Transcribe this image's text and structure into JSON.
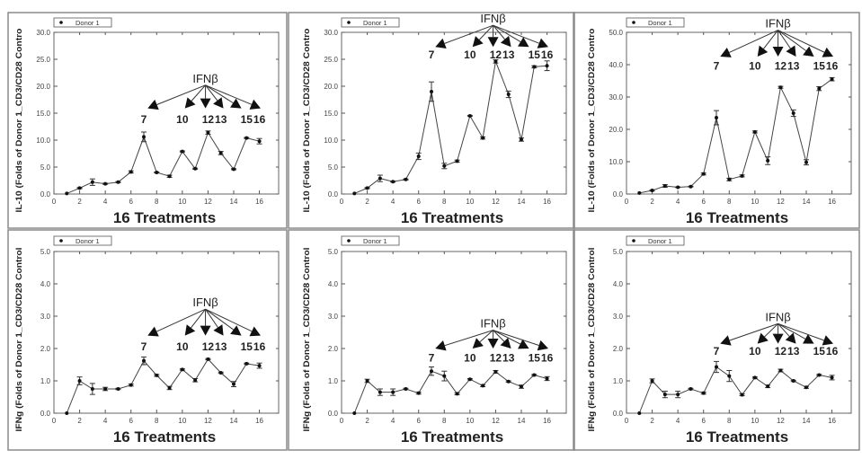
{
  "chart_data": [
    {
      "type": "line",
      "ylabel": "IL-10 (Folds of Donor 1_CD3/CD28 Contro",
      "xlabel": "16 Treatments",
      "legend": "Donor 1",
      "legend_placement": "top-left",
      "xlim": [
        0,
        17.5
      ],
      "ylim": [
        0,
        30
      ],
      "xticks": [
        0,
        2,
        4,
        6,
        8,
        10,
        12,
        14,
        16
      ],
      "yticks": [
        "0.0",
        "5.0",
        "10.0",
        "15.0",
        "20.0",
        "25.0",
        "30.0"
      ],
      "annotation": {
        "text": "IFNβ",
        "targets": [
          "7",
          "10",
          "12",
          "13",
          "15",
          "16"
        ]
      },
      "series": [
        {
          "name": "Donor 1",
          "x": [
            1,
            2,
            3,
            4,
            5,
            6,
            7,
            8,
            9,
            10,
            11,
            12,
            13,
            14,
            15,
            16
          ],
          "y": [
            0.1,
            1.1,
            2.2,
            1.9,
            2.2,
            4.1,
            10.6,
            4.0,
            3.3,
            7.9,
            4.7,
            11.4,
            7.6,
            4.6,
            10.4,
            9.8
          ],
          "err": [
            0,
            0.1,
            0.6,
            0.1,
            0.1,
            0.2,
            0.9,
            0.1,
            0.2,
            0.1,
            0.1,
            0.3,
            0.3,
            0.1,
            0.1,
            0.5
          ]
        }
      ]
    },
    {
      "type": "line",
      "ylabel": "IL-10 (Folds of Donor 1_CD3/CD28 Contro",
      "xlabel": "16 Treatments",
      "legend": "Donor 1",
      "legend_placement": "top-left",
      "xlim": [
        0,
        17.5
      ],
      "ylim": [
        0,
        30
      ],
      "xticks": [
        0,
        2,
        4,
        6,
        8,
        10,
        12,
        14,
        16
      ],
      "yticks": [
        "0.0",
        "5.0",
        "10.0",
        "15.0",
        "20.0",
        "25.0",
        "30.0"
      ],
      "annotation": {
        "text": "IFNβ",
        "targets": [
          "7",
          "10",
          "12",
          "13",
          "15",
          "16"
        ]
      },
      "series": [
        {
          "name": "Donor 1",
          "x": [
            1,
            2,
            3,
            4,
            5,
            6,
            7,
            8,
            9,
            10,
            11,
            12,
            13,
            14,
            15,
            16
          ],
          "y": [
            0.1,
            1.1,
            2.9,
            2.3,
            2.7,
            7.0,
            19.0,
            5.2,
            6.1,
            14.5,
            10.4,
            24.6,
            18.5,
            10.1,
            23.6,
            23.8
          ],
          "err": [
            0,
            0.1,
            0.6,
            0.1,
            0.1,
            0.6,
            1.8,
            0.5,
            0.2,
            0.1,
            0.2,
            0.3,
            0.6,
            0.3,
            0.2,
            0.9
          ]
        }
      ]
    },
    {
      "type": "line",
      "ylabel": "IL-10 (Folds of Donor 1_CD3/CD28 Contro",
      "xlabel": "16 Treatments",
      "legend": "Donor 1",
      "legend_placement": "top-left",
      "xlim": [
        0,
        17.5
      ],
      "ylim": [
        0,
        50
      ],
      "xticks": [
        0,
        2,
        4,
        6,
        8,
        10,
        12,
        14,
        16
      ],
      "yticks": [
        "0.0",
        "10.0",
        "20.0",
        "30.0",
        "40.0",
        "50.0"
      ],
      "annotation": {
        "text": "IFNβ",
        "targets": [
          "7",
          "10",
          "12",
          "13",
          "15",
          "16"
        ]
      },
      "series": [
        {
          "name": "Donor 1",
          "x": [
            1,
            2,
            3,
            4,
            5,
            6,
            7,
            8,
            9,
            10,
            11,
            12,
            13,
            14,
            15,
            16
          ],
          "y": [
            0.3,
            1.1,
            2.5,
            2.1,
            2.3,
            6.2,
            23.6,
            4.5,
            5.6,
            19.2,
            10.3,
            33.0,
            25.0,
            9.8,
            32.6,
            35.5
          ],
          "err": [
            0,
            0.2,
            0.4,
            0.1,
            0.1,
            0.3,
            2.2,
            0.4,
            0.3,
            0.3,
            1.2,
            0.3,
            1.0,
            0.8,
            0.6,
            0.5
          ]
        }
      ]
    },
    {
      "type": "line",
      "ylabel": "IFNg (Folds of Donor 1_CD3/CD28 Control",
      "xlabel": "16 Treatments",
      "legend": "Donor 1",
      "legend_placement": "top-left",
      "xlim": [
        0,
        17.5
      ],
      "ylim": [
        0,
        5
      ],
      "xticks": [
        0,
        2,
        4,
        6,
        8,
        10,
        12,
        14,
        16
      ],
      "yticks": [
        "0.0",
        "1.0",
        "2.0",
        "3.0",
        "4.0",
        "5.0"
      ],
      "annotation": {
        "text": "IFNβ",
        "targets": [
          "7",
          "10",
          "12",
          "13",
          "15",
          "16"
        ]
      },
      "series": [
        {
          "name": "Donor 1",
          "x": [
            1,
            2,
            3,
            4,
            5,
            6,
            7,
            8,
            9,
            10,
            11,
            12,
            13,
            14,
            15,
            16
          ],
          "y": [
            0,
            1.0,
            0.75,
            0.75,
            0.75,
            0.87,
            1.62,
            1.17,
            0.78,
            1.35,
            1.02,
            1.67,
            1.25,
            0.9,
            1.53,
            1.47
          ],
          "err": [
            0,
            0.12,
            0.17,
            0.05,
            0.02,
            0.03,
            0.12,
            0.03,
            0.05,
            0.02,
            0.05,
            0.02,
            0.02,
            0.08,
            0.02,
            0.08
          ]
        }
      ]
    },
    {
      "type": "line",
      "ylabel": "IFNg (Folds of Donor 1_CD3/CD28 Control",
      "xlabel": "16 Treatments",
      "legend": "Donor 1",
      "legend_placement": "top-left",
      "xlim": [
        0,
        17.5
      ],
      "ylim": [
        0,
        5
      ],
      "xticks": [
        0,
        2,
        4,
        6,
        8,
        10,
        12,
        14,
        16
      ],
      "yticks": [
        "0.0",
        "1.0",
        "2.0",
        "3.0",
        "4.0",
        "5.0"
      ],
      "annotation": {
        "text": "IFNβ",
        "targets": [
          "7",
          "10",
          "12",
          "13",
          "15",
          "16"
        ]
      },
      "series": [
        {
          "name": "Donor 1",
          "x": [
            1,
            2,
            3,
            4,
            5,
            6,
            7,
            8,
            9,
            10,
            11,
            12,
            13,
            14,
            15,
            16
          ],
          "y": [
            0,
            1.0,
            0.65,
            0.65,
            0.75,
            0.62,
            1.3,
            1.15,
            0.6,
            1.05,
            0.85,
            1.28,
            0.98,
            0.82,
            1.18,
            1.07
          ],
          "err": [
            0,
            0.05,
            0.1,
            0.1,
            0.02,
            0.03,
            0.13,
            0.15,
            0.03,
            0.02,
            0.03,
            0.04,
            0.02,
            0.05,
            0.02,
            0.06
          ]
        }
      ]
    },
    {
      "type": "line",
      "ylabel": "IFNg (Folds of Donor 1_CD3/CD28 Control",
      "xlabel": "16 Treatments",
      "legend": "Donor 1",
      "legend_placement": "top-left",
      "xlim": [
        0,
        17.5
      ],
      "ylim": [
        0,
        5
      ],
      "xticks": [
        0,
        2,
        4,
        6,
        8,
        10,
        12,
        14,
        16
      ],
      "yticks": [
        "0.0",
        "1.0",
        "2.0",
        "3.0",
        "4.0",
        "5.0"
      ],
      "annotation": {
        "text": "IFNβ",
        "targets": [
          "7",
          "10",
          "12",
          "13",
          "15",
          "16"
        ]
      },
      "series": [
        {
          "name": "Donor 1",
          "x": [
            1,
            2,
            3,
            4,
            5,
            6,
            7,
            8,
            9,
            10,
            11,
            12,
            13,
            14,
            15,
            16
          ],
          "y": [
            0,
            1.0,
            0.58,
            0.58,
            0.75,
            0.62,
            1.43,
            1.15,
            0.57,
            1.1,
            0.83,
            1.32,
            1.0,
            0.8,
            1.18,
            1.1
          ],
          "err": [
            0,
            0.06,
            0.1,
            0.1,
            0.02,
            0.03,
            0.17,
            0.17,
            0.03,
            0.02,
            0.04,
            0.04,
            0.02,
            0.03,
            0.02,
            0.07
          ]
        }
      ]
    }
  ]
}
